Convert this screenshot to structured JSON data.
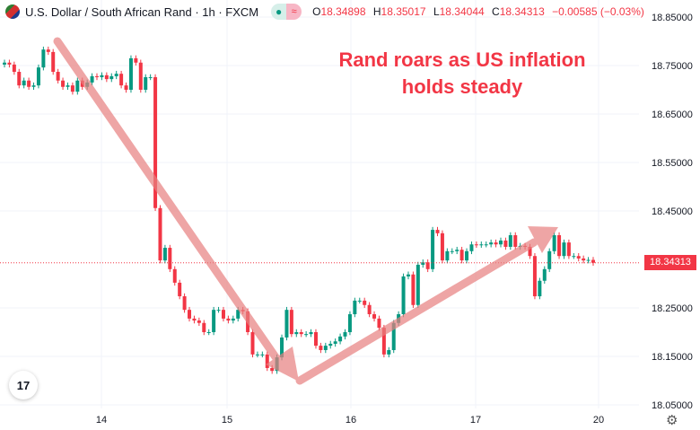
{
  "header": {
    "symbol_title": "U.S. Dollar / South African Rand · 1h · FXCM",
    "market_status_icon": "green-dot-icon",
    "indicator_icon": "approx-icon",
    "ohlc": {
      "o_label": "O",
      "o": "18.34898",
      "h_label": "H",
      "h": "18.35017",
      "l_label": "L",
      "l": "18.34044",
      "c_label": "C",
      "c": "18.34313",
      "change": "−0.00585 (−0.03%)"
    }
  },
  "annotation": {
    "line1": "Rand roars as US inflation",
    "line2": "holds steady",
    "color": "#f23645"
  },
  "current_price_label": "18.34313",
  "colors": {
    "up": "#089981",
    "down": "#f23645",
    "arrow": "#e88080"
  },
  "chart_data": {
    "type": "candlestick",
    "title": "",
    "y_ticks": [
      "18.85000",
      "18.75000",
      "18.65000",
      "18.55000",
      "18.45000",
      "18.25000",
      "18.15000",
      "18.05000"
    ],
    "ylim": [
      18.05,
      18.85
    ],
    "x_ticks": [
      "14",
      "15",
      "16",
      "17",
      "20"
    ],
    "grid": true,
    "open_first": 18.752,
    "close": [
      18.756,
      18.752,
      18.737,
      18.709,
      18.719,
      18.706,
      18.709,
      18.746,
      18.783,
      18.778,
      18.737,
      18.719,
      18.706,
      18.709,
      18.696,
      18.719,
      18.706,
      18.715,
      18.728,
      18.726,
      18.73,
      18.722,
      18.728,
      18.733,
      18.709,
      18.7,
      18.765,
      18.756,
      18.7,
      18.726,
      18.726,
      18.456,
      18.348,
      18.374,
      18.33,
      18.302,
      18.274,
      18.246,
      18.228,
      18.224,
      18.219,
      18.2,
      18.2,
      18.246,
      18.246,
      18.228,
      18.224,
      18.228,
      18.246,
      18.243,
      18.2,
      18.154,
      18.154,
      18.154,
      18.126,
      18.12,
      18.148,
      18.189,
      18.246,
      18.196,
      18.2,
      18.196,
      18.196,
      18.2,
      18.172,
      18.163,
      18.172,
      18.176,
      18.181,
      18.191,
      18.2,
      18.237,
      18.265,
      18.265,
      18.256,
      18.237,
      18.228,
      18.209,
      18.154,
      18.163,
      18.219,
      18.237,
      18.315,
      18.319,
      18.256,
      18.339,
      18.344,
      18.33,
      18.411,
      18.404,
      18.348,
      18.367,
      18.367,
      18.37,
      18.348,
      18.367,
      18.381,
      18.38,
      18.381,
      18.381,
      18.385,
      18.381,
      18.389,
      18.376,
      18.4,
      18.376,
      18.378,
      18.376,
      18.357,
      18.274,
      18.306,
      18.33,
      18.367,
      18.4,
      18.357,
      18.385,
      18.357,
      18.357,
      18.352,
      18.348,
      18.349,
      18.343
    ],
    "last_price": 18.34313
  }
}
